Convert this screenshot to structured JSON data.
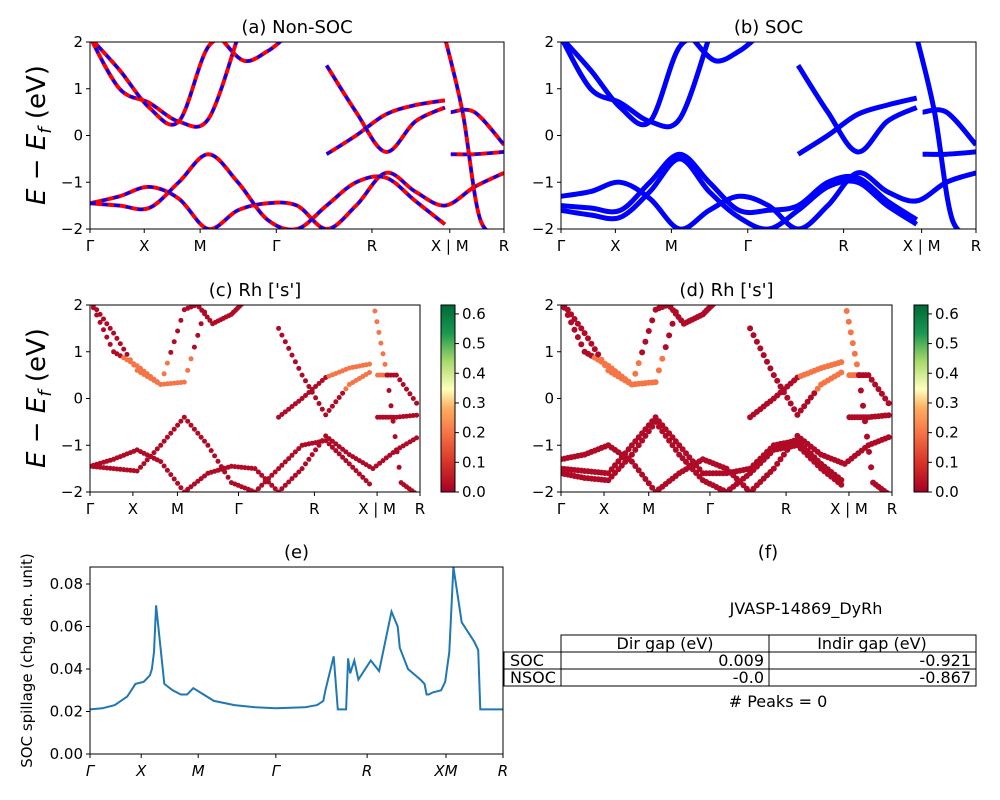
{
  "figure_title": "",
  "ylabel_energy": "E − E_f (eV)",
  "chart_data": [
    {
      "id": "a",
      "type": "line",
      "title": "(a) Non-SOC",
      "ylim": [
        -2,
        2
      ],
      "yticks": [
        "2",
        "1",
        "0",
        "−1",
        "−2"
      ],
      "xticks": [
        "Γ",
        "X",
        "M",
        "Γ",
        "R",
        "X | M",
        "R"
      ],
      "series": [
        {
          "color": "#ff0000",
          "values_note": "",
          "x": [
            0,
            0.5,
            1,
            1.5,
            2,
            2.5,
            3,
            3.5,
            4,
            4.5,
            5,
            5.5,
            6,
            6.5,
            7
          ],
          "y": [
            -1.45,
            -1.3,
            -1.1,
            -1.35,
            -2,
            -1.6,
            -1.45,
            -1.5,
            -2,
            -1.5,
            -0.8,
            -1.2,
            -1.5,
            -1.1,
            -0.8
          ]
        },
        {
          "color": "#ff0000",
          "x": [
            0,
            0.5,
            1,
            1.5,
            2,
            2.5,
            3,
            3.5,
            4,
            4.5,
            5,
            5.5,
            6,
            6.5,
            7
          ],
          "y": [
            -1.45,
            -1.5,
            -1.55,
            -1.0,
            -0.4,
            -1.0,
            -1.8,
            -2,
            -1.5,
            -1.0,
            -0.9,
            -1.4,
            -1.9,
            null,
            null
          ]
        },
        {
          "color": "#ff0000",
          "x": [
            0,
            0.5,
            1,
            1.5,
            2,
            2.5,
            3,
            3.5,
            4,
            4.5,
            5,
            5.5,
            6
          ],
          "y": [
            2.1,
            1.0,
            0.7,
            0.3,
            0.35,
            2.1,
            null,
            null,
            -0.4,
            0.0,
            0.45,
            0.65,
            0.75
          ]
        },
        {
          "color": "#ff0000",
          "x": [
            0,
            0.5,
            1,
            1.5,
            2,
            2.5,
            3,
            3.5,
            4,
            4.5,
            5,
            5.5,
            6
          ],
          "y": [
            2.1,
            1.4,
            0.6,
            0.3,
            1.9,
            2.1,
            null,
            null,
            1.5,
            0.5,
            -0.35,
            0.3,
            0.6
          ]
        },
        {
          "color": "#ff0000",
          "x": [
            2.2,
            2.6,
            3.0,
            3.3
          ],
          "y": [
            2.1,
            1.6,
            1.8,
            2.1
          ]
        },
        {
          "color": "#ff0000",
          "x": [
            6.1,
            6.5,
            7
          ],
          "y": [
            0.5,
            0.5,
            -0.2
          ]
        },
        {
          "color": "#ff0000",
          "x": [
            6.1,
            6.5,
            7
          ],
          "y": [
            -0.4,
            -0.4,
            -0.35
          ]
        },
        {
          "color": "#ff0000",
          "x": [
            6.0,
            6.3,
            6.6,
            7
          ],
          "y": [
            2.1,
            0.5,
            -1.8,
            -2.1
          ]
        }
      ],
      "xmax": 7
    },
    {
      "id": "b",
      "type": "line",
      "title": "(b) SOC",
      "ylim": [
        -2,
        2
      ],
      "yticks": [
        "2",
        "1",
        "0",
        "−1",
        "−2"
      ],
      "xticks": [
        "Γ",
        "X",
        "M",
        "Γ",
        "R",
        "X | M",
        "R"
      ],
      "series": [
        {
          "color": "#0000ff",
          "x": [
            0,
            0.5,
            1,
            1.5,
            2,
            2.5,
            3,
            3.5,
            4,
            4.5,
            5,
            5.5,
            6,
            6.5,
            7
          ],
          "y": [
            -1.3,
            -1.2,
            -1.0,
            -1.35,
            -2,
            -1.6,
            -1.3,
            -1.5,
            -2,
            -1.5,
            -0.8,
            -1.2,
            -1.4,
            -1.0,
            -0.8
          ]
        },
        {
          "color": "#0000ff",
          "x": [
            0,
            0.5,
            1,
            1.5,
            2,
            2.5,
            3,
            3.5,
            4,
            4.5,
            5,
            5.5,
            6
          ],
          "y": [
            -1.5,
            -1.55,
            -1.6,
            -1.0,
            -0.4,
            -1.0,
            -1.6,
            -1.6,
            -1.5,
            -1.0,
            -0.9,
            -1.4,
            -1.8
          ]
        },
        {
          "color": "#0000ff",
          "x": [
            0,
            0.5,
            1,
            1.5,
            2,
            2.5,
            3,
            3.5,
            4,
            4.5,
            5,
            5.5,
            6
          ],
          "y": [
            -1.6,
            -1.7,
            -1.75,
            -1.2,
            -0.5,
            -1.2,
            -1.75,
            -2.0,
            -1.6,
            -1.1,
            -1.0,
            -1.5,
            -1.9
          ]
        },
        {
          "color": "#0000ff",
          "x": [
            0,
            0.5,
            1,
            1.5,
            2,
            2.5,
            3,
            3.5,
            4,
            4.5,
            5,
            5.5,
            6
          ],
          "y": [
            2.1,
            1.0,
            0.7,
            0.3,
            0.35,
            2.1,
            null,
            null,
            -0.4,
            0.0,
            0.45,
            0.65,
            0.8
          ]
        },
        {
          "color": "#0000ff",
          "x": [
            0,
            0.5,
            1,
            1.5,
            2,
            2.5,
            3,
            3.5,
            4,
            4.5,
            5,
            5.5,
            6
          ],
          "y": [
            2.1,
            1.4,
            0.6,
            0.3,
            1.9,
            2.1,
            null,
            null,
            1.5,
            0.5,
            -0.35,
            0.3,
            0.6
          ]
        },
        {
          "color": "#0000ff",
          "x": [
            2.2,
            2.6,
            3.0,
            3.3
          ],
          "y": [
            2.1,
            1.6,
            1.8,
            2.1
          ]
        },
        {
          "color": "#0000ff",
          "x": [
            6.1,
            6.5,
            7
          ],
          "y": [
            0.5,
            0.5,
            -0.2
          ]
        },
        {
          "color": "#0000ff",
          "x": [
            6.1,
            6.5,
            7
          ],
          "y": [
            -0.4,
            -0.4,
            -0.35
          ]
        },
        {
          "color": "#0000ff",
          "x": [
            6.0,
            6.3,
            6.6,
            7
          ],
          "y": [
            2.1,
            0.5,
            -1.8,
            -2.1
          ]
        }
      ],
      "xmax": 7
    },
    {
      "id": "c",
      "type": "scatter",
      "title": "(c)  Rh ['s']",
      "ylim": [
        -2,
        2
      ],
      "yticks": [
        "2",
        "1",
        "0",
        "−1",
        "−2"
      ],
      "xticks": [
        "Γ",
        "X",
        "M",
        "Γ",
        "R",
        "X | M",
        "R"
      ],
      "colorbar": {
        "min": 0.0,
        "max": 0.63,
        "ticks": [
          "0.6",
          "0.5",
          "0.4",
          "0.3",
          "0.2",
          "0.1",
          "0.0"
        ],
        "cmap": "RdYlGn"
      },
      "xmax": 7
    },
    {
      "id": "d",
      "type": "scatter",
      "title": "(d) Rh ['s']",
      "ylim": [
        -2,
        2
      ],
      "yticks": [
        "2",
        "1",
        "0",
        "−1",
        "−2"
      ],
      "xticks": [
        "Γ",
        "X",
        "M",
        "Γ",
        "R",
        "X | M",
        "R"
      ],
      "colorbar": {
        "min": 0.0,
        "max": 0.63,
        "ticks": [
          "0.6",
          "0.5",
          "0.4",
          "0.3",
          "0.2",
          "0.1",
          "0.0"
        ],
        "cmap": "RdYlGn"
      },
      "xmax": 7
    },
    {
      "id": "e",
      "type": "line",
      "title": "(e)",
      "ylabel": "SOC spillage (chg. den. unit)",
      "ylim": [
        0.0,
        0.088
      ],
      "yticks": [
        "0.08",
        "0.06",
        "0.04",
        "0.02",
        "0.00"
      ],
      "xticks": [
        "Γ",
        "X",
        "M",
        "Γ",
        "R",
        "XM",
        "R"
      ],
      "color": "#1f77b4",
      "x": [
        0,
        0.3,
        0.6,
        0.9,
        1.0,
        1.1,
        1.3,
        1.45,
        1.5,
        1.55,
        1.6,
        1.8,
        2.0,
        2.2,
        2.3,
        2.35,
        2.5,
        3.0,
        3.5,
        4.0,
        4.5,
        5.2,
        5.5,
        5.65,
        5.7,
        5.9,
        6.0,
        6.05,
        6.1,
        6.2,
        6.25,
        6.3,
        6.4,
        6.5,
        6.8,
        7.0,
        7.3,
        7.45,
        7.5,
        7.7,
        8.0,
        8.1,
        8.15,
        8.2,
        8.3,
        8.5,
        8.6,
        8.7,
        8.8,
        9.0,
        9.3,
        9.4,
        9.45,
        9.5,
        9.6,
        9.8,
        10.0
      ],
      "y": [
        0.021,
        0.0215,
        0.023,
        0.027,
        0.03,
        0.033,
        0.034,
        0.037,
        0.04,
        0.048,
        0.07,
        0.033,
        0.03,
        0.028,
        0.028,
        0.028,
        0.031,
        0.025,
        0.023,
        0.022,
        0.0215,
        0.022,
        0.023,
        0.025,
        0.03,
        0.046,
        0.021,
        0.021,
        0.021,
        0.021,
        0.045,
        0.038,
        0.044,
        0.035,
        0.044,
        0.039,
        0.067,
        0.06,
        0.05,
        0.04,
        0.035,
        0.033,
        0.028,
        0.028,
        0.029,
        0.03,
        0.034,
        0.048,
        0.088,
        0.062,
        0.053,
        0.049,
        0.021,
        0.021,
        0.021,
        0.021,
        0.021
      ],
      "xmax": 10
    }
  ],
  "panel_f": {
    "title": "(f)",
    "material": "JVASP-14869_DyRh",
    "table": {
      "headers": [
        "",
        "Dir gap (eV)",
        "Indir gap (eV)"
      ],
      "rows": [
        [
          "SOC",
          "0.009",
          "-0.921"
        ],
        [
          "NSOC",
          "-0.0",
          "-0.867"
        ]
      ]
    },
    "peaks": "# Peaks = 0"
  }
}
